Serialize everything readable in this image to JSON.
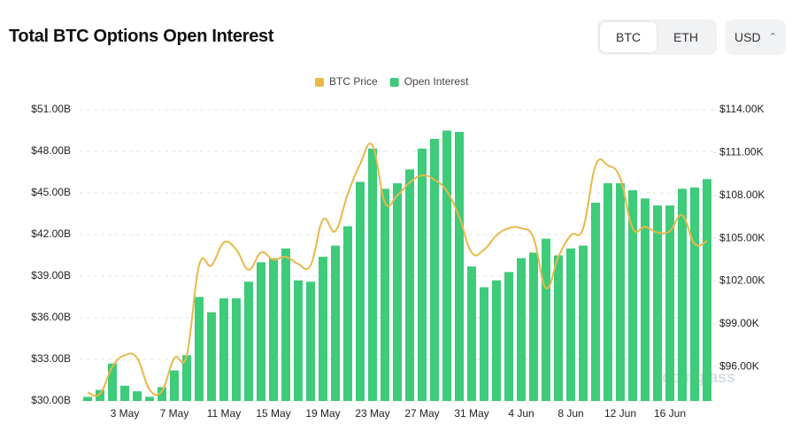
{
  "chart_data": {
    "type": "bar",
    "title": "Total BTC Options Open Interest",
    "categories": [
      null,
      null,
      null,
      "3 May",
      null,
      null,
      null,
      "7 May",
      null,
      null,
      null,
      "11 May",
      null,
      null,
      null,
      "15 May",
      null,
      null,
      null,
      "19 May",
      null,
      null,
      null,
      "23 May",
      null,
      null,
      null,
      "27 May",
      null,
      null,
      null,
      "31 May",
      null,
      null,
      null,
      "4 Jun",
      null,
      null,
      null,
      "8 Jun",
      null,
      null,
      null,
      "12 Jun",
      null,
      null,
      null,
      "16 Jun",
      null,
      null,
      null
    ],
    "series": [
      {
        "name": "BTC Price",
        "type": "line",
        "axis": "y2",
        "color": "#e8b84a",
        "values": [
          94.2,
          94.1,
          96.0,
          96.8,
          96.6,
          94.4,
          94.3,
          96.6,
          96.8,
          103.1,
          103.1,
          104.7,
          104.2,
          102.8,
          104.0,
          103.5,
          103.7,
          103.2,
          103.1,
          106.3,
          105.5,
          108.1,
          110.2,
          111.5,
          107.5,
          108.0,
          108.9,
          109.4,
          109.1,
          108.3,
          106.5,
          104.0,
          104.2,
          105.2,
          105.7,
          105.7,
          105.0,
          101.5,
          103.7,
          105.2,
          105.7,
          110.1,
          110.1,
          109.2,
          105.7,
          105.8,
          105.4,
          105.5,
          106.6,
          104.6,
          104.8
        ]
      },
      {
        "name": "Open Interest",
        "type": "bar",
        "color": "#3ecb7a",
        "values": [
          30.3,
          30.8,
          32.7,
          31.1,
          30.7,
          30.3,
          31.0,
          32.2,
          33.3,
          37.5,
          36.4,
          37.4,
          37.4,
          38.6,
          40.0,
          40.3,
          41.0,
          38.7,
          38.6,
          40.4,
          41.2,
          42.6,
          45.8,
          48.2,
          45.3,
          45.7,
          46.7,
          48.2,
          48.9,
          49.5,
          49.4,
          39.7,
          38.2,
          38.7,
          39.3,
          40.3,
          40.7,
          41.7,
          40.5,
          41.0,
          41.2,
          44.3,
          45.7,
          45.7,
          45.2,
          44.6,
          44.1,
          44.1,
          45.3,
          45.4,
          46.0
        ]
      }
    ],
    "ylim": [
      30,
      51
    ],
    "yticks": [
      {
        "value": 30,
        "label": "$30.00B"
      },
      {
        "value": 33,
        "label": "$33.00B"
      },
      {
        "value": 36,
        "label": "$36.00B"
      },
      {
        "value": 39,
        "label": "$39.00B"
      },
      {
        "value": 42,
        "label": "$42.00B"
      },
      {
        "value": 45,
        "label": "$45.00B"
      },
      {
        "value": 48,
        "label": "$48.00B"
      },
      {
        "value": 51,
        "label": "$51.00B"
      }
    ],
    "y2lim": [
      93.6,
      114
    ],
    "y2ticks": [
      {
        "value": 96,
        "label": "$96.00K"
      },
      {
        "value": 99,
        "label": "$99.00K"
      },
      {
        "value": 102,
        "label": "$102.00K"
      },
      {
        "value": 105,
        "label": "$105.00K"
      },
      {
        "value": 108,
        "label": "$108.00K"
      },
      {
        "value": 111,
        "label": "$111.00K"
      },
      {
        "value": 114,
        "label": "$114.00K"
      }
    ],
    "grid": true,
    "legend": "top"
  },
  "controls": {
    "assets": [
      "BTC",
      "ETH"
    ],
    "currency": "USD"
  },
  "watermark": "coinglass"
}
